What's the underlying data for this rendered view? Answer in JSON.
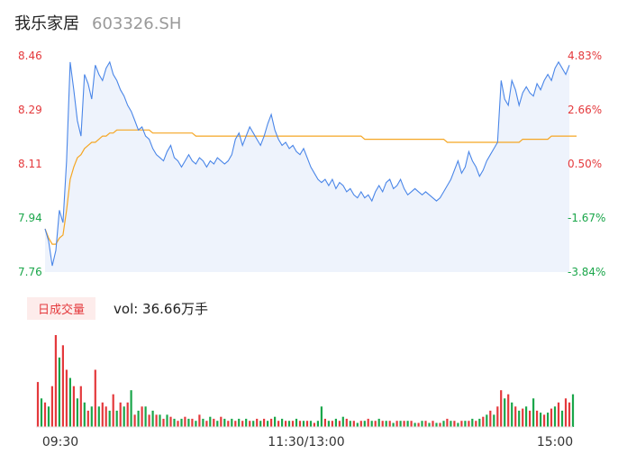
{
  "header": {
    "name": "我乐家居",
    "code": "603326.SH"
  },
  "colors": {
    "price_line": "#4a86e8",
    "avg_line": "#f5a623",
    "up": "#e4393c",
    "down": "#1aa64a",
    "neutral": "#888888",
    "area": "#eef3fc"
  },
  "volume": {
    "badge": "日成交量",
    "label": "vol: 36.66万手"
  },
  "chart_data": {
    "type": "line",
    "price_ticks": [
      "8.46",
      "8.29",
      "8.11",
      "7.94",
      "7.76"
    ],
    "pct_ticks": [
      "4.83%",
      "2.66%",
      "0.50%",
      "-1.67%",
      "-3.84%"
    ],
    "ylim": [
      7.76,
      8.46
    ],
    "prev_close": 8.07,
    "time_labels": [
      "09:30",
      "11:30/13:00",
      "15:00"
    ],
    "price": [
      7.9,
      7.86,
      7.78,
      7.83,
      7.96,
      7.92,
      8.12,
      8.44,
      8.35,
      8.25,
      8.2,
      8.4,
      8.37,
      8.32,
      8.43,
      8.4,
      8.38,
      8.42,
      8.44,
      8.4,
      8.38,
      8.35,
      8.33,
      8.3,
      8.28,
      8.25,
      8.22,
      8.23,
      8.2,
      8.19,
      8.16,
      8.14,
      8.13,
      8.12,
      8.15,
      8.17,
      8.13,
      8.12,
      8.1,
      8.12,
      8.14,
      8.12,
      8.11,
      8.13,
      8.12,
      8.1,
      8.12,
      8.11,
      8.13,
      8.12,
      8.11,
      8.12,
      8.14,
      8.19,
      8.21,
      8.17,
      8.2,
      8.23,
      8.21,
      8.19,
      8.17,
      8.2,
      8.24,
      8.27,
      8.22,
      8.19,
      8.17,
      8.18,
      8.16,
      8.17,
      8.15,
      8.14,
      8.16,
      8.13,
      8.1,
      8.08,
      8.06,
      8.05,
      8.06,
      8.04,
      8.06,
      8.03,
      8.05,
      8.04,
      8.02,
      8.03,
      8.01,
      8.0,
      8.02,
      8.0,
      8.01,
      7.99,
      8.02,
      8.04,
      8.02,
      8.05,
      8.06,
      8.03,
      8.04,
      8.06,
      8.03,
      8.01,
      8.02,
      8.03,
      8.02,
      8.01,
      8.02,
      8.01,
      8.0,
      7.99,
      8.0,
      8.02,
      8.04,
      8.06,
      8.09,
      8.12,
      8.08,
      8.1,
      8.15,
      8.12,
      8.1,
      8.07,
      8.09,
      8.12,
      8.14,
      8.16,
      8.18,
      8.38,
      8.32,
      8.3,
      8.38,
      8.35,
      8.3,
      8.34,
      8.36,
      8.34,
      8.33,
      8.37,
      8.35,
      8.38,
      8.4,
      8.38,
      8.42,
      8.44,
      8.42,
      8.4,
      8.43
    ],
    "avg": [
      7.9,
      7.87,
      7.85,
      7.85,
      7.87,
      7.88,
      7.96,
      8.06,
      8.1,
      8.13,
      8.14,
      8.16,
      8.17,
      8.18,
      8.18,
      8.19,
      8.2,
      8.2,
      8.21,
      8.21,
      8.22,
      8.22,
      8.22,
      8.22,
      8.22,
      8.22,
      8.22,
      8.22,
      8.22,
      8.22,
      8.21,
      8.21,
      8.21,
      8.21,
      8.21,
      8.21,
      8.21,
      8.21,
      8.21,
      8.21,
      8.21,
      8.21,
      8.2,
      8.2,
      8.2,
      8.2,
      8.2,
      8.2,
      8.2,
      8.2,
      8.2,
      8.2,
      8.2,
      8.2,
      8.2,
      8.2,
      8.2,
      8.2,
      8.2,
      8.2,
      8.2,
      8.2,
      8.2,
      8.2,
      8.2,
      8.2,
      8.2,
      8.2,
      8.2,
      8.2,
      8.2,
      8.2,
      8.2,
      8.2,
      8.2,
      8.2,
      8.2,
      8.2,
      8.2,
      8.2,
      8.2,
      8.2,
      8.2,
      8.2,
      8.2,
      8.2,
      8.2,
      8.2,
      8.2,
      8.19,
      8.19,
      8.19,
      8.19,
      8.19,
      8.19,
      8.19,
      8.19,
      8.19,
      8.19,
      8.19,
      8.19,
      8.19,
      8.19,
      8.19,
      8.19,
      8.19,
      8.19,
      8.19,
      8.19,
      8.19,
      8.19,
      8.19,
      8.18,
      8.18,
      8.18,
      8.18,
      8.18,
      8.18,
      8.18,
      8.18,
      8.18,
      8.18,
      8.18,
      8.18,
      8.18,
      8.18,
      8.18,
      8.18,
      8.18,
      8.18,
      8.18,
      8.18,
      8.18,
      8.19,
      8.19,
      8.19,
      8.19,
      8.19,
      8.19,
      8.19,
      8.19,
      8.2,
      8.2,
      8.2,
      8.2,
      8.2,
      8.2,
      8.2,
      8.2
    ],
    "volume": [
      22,
      14,
      12,
      10,
      20,
      45,
      34,
      40,
      28,
      24,
      20,
      14,
      20,
      12,
      8,
      10,
      28,
      10,
      12,
      10,
      8,
      16,
      8,
      12,
      10,
      12,
      18,
      6,
      8,
      10,
      10,
      6,
      8,
      6,
      6,
      4,
      6,
      5,
      4,
      3,
      4,
      5,
      4,
      4,
      3,
      6,
      4,
      3,
      5,
      4,
      3,
      5,
      4,
      3,
      4,
      3,
      4,
      3,
      4,
      3,
      3,
      4,
      3,
      4,
      3,
      4,
      5,
      3,
      4,
      3,
      3,
      3,
      4,
      3,
      3,
      3,
      3,
      2,
      3,
      10,
      4,
      3,
      3,
      4,
      3,
      5,
      4,
      3,
      3,
      2,
      3,
      3,
      4,
      3,
      3,
      4,
      3,
      3,
      3,
      2,
      3,
      3,
      3,
      3,
      3,
      2,
      2,
      3,
      3,
      2,
      3,
      2,
      2,
      3,
      4,
      3,
      3,
      2,
      3,
      3,
      3,
      4,
      3,
      4,
      5,
      6,
      8,
      6,
      10,
      18,
      14,
      16,
      12,
      10,
      8,
      9,
      10,
      8,
      14,
      8,
      7,
      6,
      7,
      9,
      10,
      12,
      8,
      14,
      12,
      16
    ],
    "volume_dir": [
      "u",
      "d",
      "u",
      "d",
      "u",
      "u",
      "d",
      "u",
      "u",
      "d",
      "u",
      "d",
      "u",
      "d",
      "u",
      "d",
      "u",
      "d",
      "u",
      "u",
      "d",
      "u",
      "d",
      "u",
      "d",
      "u",
      "d",
      "u",
      "d",
      "u",
      "d",
      "u",
      "d",
      "u",
      "d",
      "u",
      "d",
      "u",
      "d",
      "u",
      "d",
      "u",
      "d",
      "u",
      "d",
      "u",
      "d",
      "u",
      "d",
      "u",
      "d",
      "u",
      "d",
      "u",
      "d",
      "u",
      "d",
      "u",
      "d",
      "u",
      "d",
      "u",
      "d",
      "u",
      "d",
      "u",
      "d",
      "u",
      "d",
      "u",
      "d",
      "u",
      "d",
      "u",
      "d",
      "u",
      "d",
      "u",
      "d",
      "d",
      "u",
      "d",
      "u",
      "d",
      "u",
      "d",
      "u",
      "d",
      "u",
      "d",
      "u",
      "d",
      "u",
      "d",
      "u",
      "d",
      "u",
      "d",
      "u",
      "d",
      "u",
      "d",
      "u",
      "d",
      "u",
      "d",
      "u",
      "d",
      "u",
      "d",
      "u",
      "d",
      "u",
      "d",
      "u",
      "d",
      "u",
      "d",
      "u",
      "d",
      "u",
      "d",
      "u",
      "d",
      "u",
      "d",
      "u",
      "d",
      "u",
      "u",
      "d",
      "u",
      "d",
      "u",
      "d",
      "u",
      "d",
      "u",
      "d",
      "u",
      "d",
      "u",
      "d",
      "u",
      "d",
      "u",
      "d",
      "u",
      "u",
      "d"
    ]
  }
}
